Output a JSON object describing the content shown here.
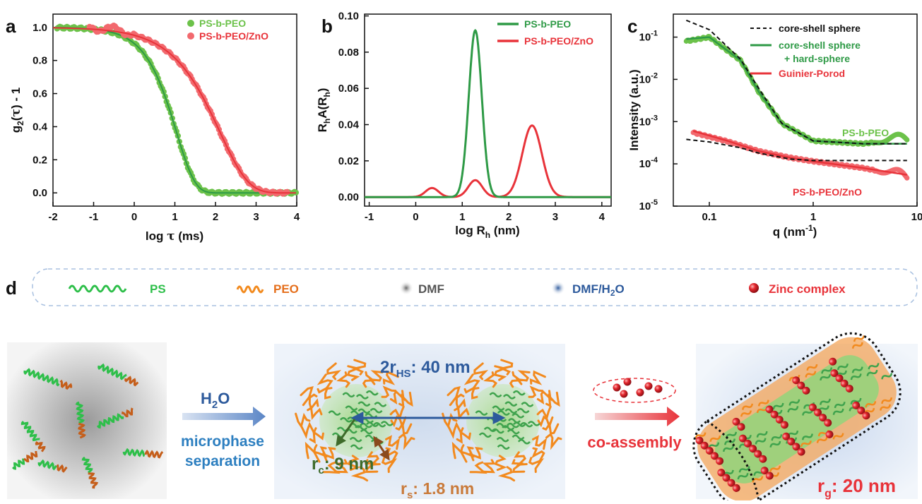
{
  "colors": {
    "green": "#2e9a46",
    "green_light": "#6cc24a",
    "red": "#e8333a",
    "red_light": "#f2696e",
    "orange": "#f28a1e",
    "blue": "#2d5a9c",
    "black": "#111111"
  },
  "chart_data": [
    {
      "panel": "a",
      "type": "scatter",
      "xlabel_parts": [
        "log ",
        "τ",
        " (ms)"
      ],
      "ylabel_parts": [
        "g",
        "2",
        "(",
        "τ",
        ") - 1"
      ],
      "xlim": [
        -2,
        4
      ],
      "ylim": [
        -0.08,
        1.08
      ],
      "xticks": [
        -2,
        -1,
        0,
        1,
        2,
        3,
        4
      ],
      "yticks": [
        0.0,
        0.2,
        0.4,
        0.6,
        0.8,
        1.0
      ],
      "series": [
        {
          "name": "PS-b-PEO",
          "model": {
            "tau_log": 0.88,
            "stretch": 0.95
          },
          "x_start": -1.9,
          "x_end": 4.0,
          "x": [
            -1.9,
            -1.0,
            0.0,
            0.5,
            0.88,
            1.2,
            1.5,
            2.0,
            3.0,
            4.0
          ],
          "y": [
            1.0,
            0.99,
            0.91,
            0.74,
            0.5,
            0.26,
            0.1,
            0.01,
            0.0,
            0.0
          ]
        },
        {
          "name": "PS-b-PEO/ZnO",
          "model": {
            "tau_log": 1.95,
            "stretch": 0.62
          },
          "x_start": -1.1,
          "x_end": 3.8,
          "x": [
            -1.1,
            -0.5,
            0.0,
            1.0,
            1.5,
            1.95,
            2.5,
            3.0,
            3.5,
            3.8
          ],
          "y": [
            1.03,
            1.0,
            0.98,
            0.86,
            0.72,
            0.5,
            0.24,
            0.08,
            0.02,
            0.01
          ]
        }
      ]
    },
    {
      "panel": "b",
      "type": "line",
      "xlabel_parts": [
        "log R",
        "h",
        " (nm)"
      ],
      "ylabel_parts": [
        "R",
        "h",
        "A(R",
        "h",
        ")"
      ],
      "xlim": [
        -1.1,
        4.2
      ],
      "ylim": [
        -0.005,
        0.101
      ],
      "xticks": [
        -1,
        0,
        1,
        2,
        3,
        4
      ],
      "yticks": [
        0.0,
        0.02,
        0.04,
        0.06,
        0.08,
        0.1
      ],
      "ytick_labels": [
        "0.00",
        "0.02",
        "0.04",
        "0.06",
        "0.08",
        "0.10"
      ],
      "series": [
        {
          "name": "PS-b-PEO",
          "peaks": [
            {
              "center": 1.28,
              "height": 0.092,
              "sigma": 0.14
            }
          ]
        },
        {
          "name": "PS-b-PEO/ZnO",
          "peaks": [
            {
              "center": 0.35,
              "height": 0.005,
              "sigma": 0.14
            },
            {
              "center": 1.28,
              "height": 0.0093,
              "sigma": 0.15
            },
            {
              "center": 2.5,
              "height": 0.0395,
              "sigma": 0.21
            }
          ]
        }
      ]
    },
    {
      "panel": "c",
      "type": "scatter",
      "scale": "log-log",
      "xlabel_parts": [
        "q (nm",
        "-1",
        ")"
      ],
      "ylabel": "Intensity (a.u.)",
      "xlim": [
        0.045,
        10
      ],
      "ylim": [
        1e-05,
        0.35
      ],
      "xticks": [
        0.1,
        1,
        10
      ],
      "xtick_labels": [
        "0.1",
        "1",
        "10"
      ],
      "yticks": [
        1e-05,
        0.0001,
        0.001,
        0.01,
        0.1
      ],
      "ytick_labels": [
        [
          "10",
          "-5"
        ],
        [
          "10",
          "-4"
        ],
        [
          "10",
          "-3"
        ],
        [
          "10",
          "-2"
        ],
        [
          "10",
          "-1"
        ]
      ],
      "series": [
        {
          "name": "core-shell sphere",
          "style": "dashed",
          "x": [
            0.06,
            0.1,
            0.2,
            0.3,
            0.5,
            1,
            3,
            8
          ],
          "y": [
            0.25,
            0.15,
            0.03,
            0.006,
            0.0009,
            0.00035,
            0.0003,
            0.0003
          ]
        },
        {
          "name": "core-shell sphere + hard-sphere",
          "style": "line",
          "x": [
            0.06,
            0.1,
            0.2,
            0.3,
            0.5,
            1,
            3,
            8
          ],
          "y": [
            0.09,
            0.1,
            0.028,
            0.005,
            0.0009,
            0.00035,
            0.0003,
            0.0003
          ]
        },
        {
          "name": "Guinier-Porod",
          "style": "line",
          "x": [
            0.07,
            0.15,
            0.3,
            0.6,
            1,
            3,
            8
          ],
          "y": [
            0.0006,
            0.00035,
            0.0002,
            0.00014,
            0.000115,
            8e-05,
            5.5e-05
          ]
        },
        {
          "name": "PS-b-PEO",
          "style": "points",
          "x": [
            0.06,
            0.1,
            0.2,
            0.3,
            0.5,
            1,
            3,
            8
          ],
          "y": [
            0.08,
            0.1,
            0.028,
            0.005,
            0.0009,
            0.00035,
            0.0003,
            0.0004
          ]
        },
        {
          "name": "PS-b-PEO/ZnO",
          "style": "points",
          "x": [
            0.07,
            0.15,
            0.3,
            0.6,
            1,
            3,
            8
          ],
          "y": [
            0.00055,
            0.00034,
            0.0002,
            0.00014,
            0.000115,
            8e-05,
            5e-05
          ]
        },
        {
          "name": "guinier-dashed",
          "style": "dashed",
          "x": [
            0.06,
            0.1,
            0.2,
            0.3,
            0.6,
            1,
            3,
            8
          ],
          "y": [
            0.00038,
            0.00033,
            0.00024,
            0.00018,
            0.00013,
            0.00012,
            0.00012,
            0.00012
          ]
        }
      ],
      "legend": [
        "core-shell sphere",
        "core-shell sphere",
        "+ hard-sphere",
        "Guinier-Porod"
      ],
      "annotations": [
        "PS-b-PEO",
        "PS-b-PEO/ZnO"
      ]
    }
  ],
  "panel_letters": {
    "a": "a",
    "b": "b",
    "c": "c",
    "d": "d"
  },
  "legend_a": {
    "series1": "PS-b-PEO",
    "series2": "PS-b-PEO/ZnO"
  },
  "legend_b": {
    "series1": "PS-b-PEO",
    "series2": "PS-b-PEO/ZnO"
  },
  "panel_d": {
    "legend": {
      "ps": "PS",
      "peo": "PEO",
      "dmf": "DMF",
      "dmf_h2o_pre": "DMF/H",
      "dmf_h2o_sub": "2",
      "dmf_h2o_post": "O",
      "zinc": "Zinc complex"
    },
    "arrow1": {
      "h2o_pre": "H",
      "h2o_sub": "2",
      "h2o_post": "O",
      "line1": "microphase",
      "line2": "separation"
    },
    "arrow2": {
      "label": "co-assembly"
    },
    "labels": {
      "rhs_pre": "2r",
      "rhs_sub": "HS",
      "rhs_post": ": 40 nm",
      "rc_pre": "r",
      "rc_sub": "c",
      "rc_post": ": 9 nm",
      "rs_pre": "r",
      "rs_sub": "s",
      "rs_post": ": 1.8 nm",
      "rg_pre": "r",
      "rg_sub": "g",
      "rg_post": ": 20 nm"
    }
  }
}
